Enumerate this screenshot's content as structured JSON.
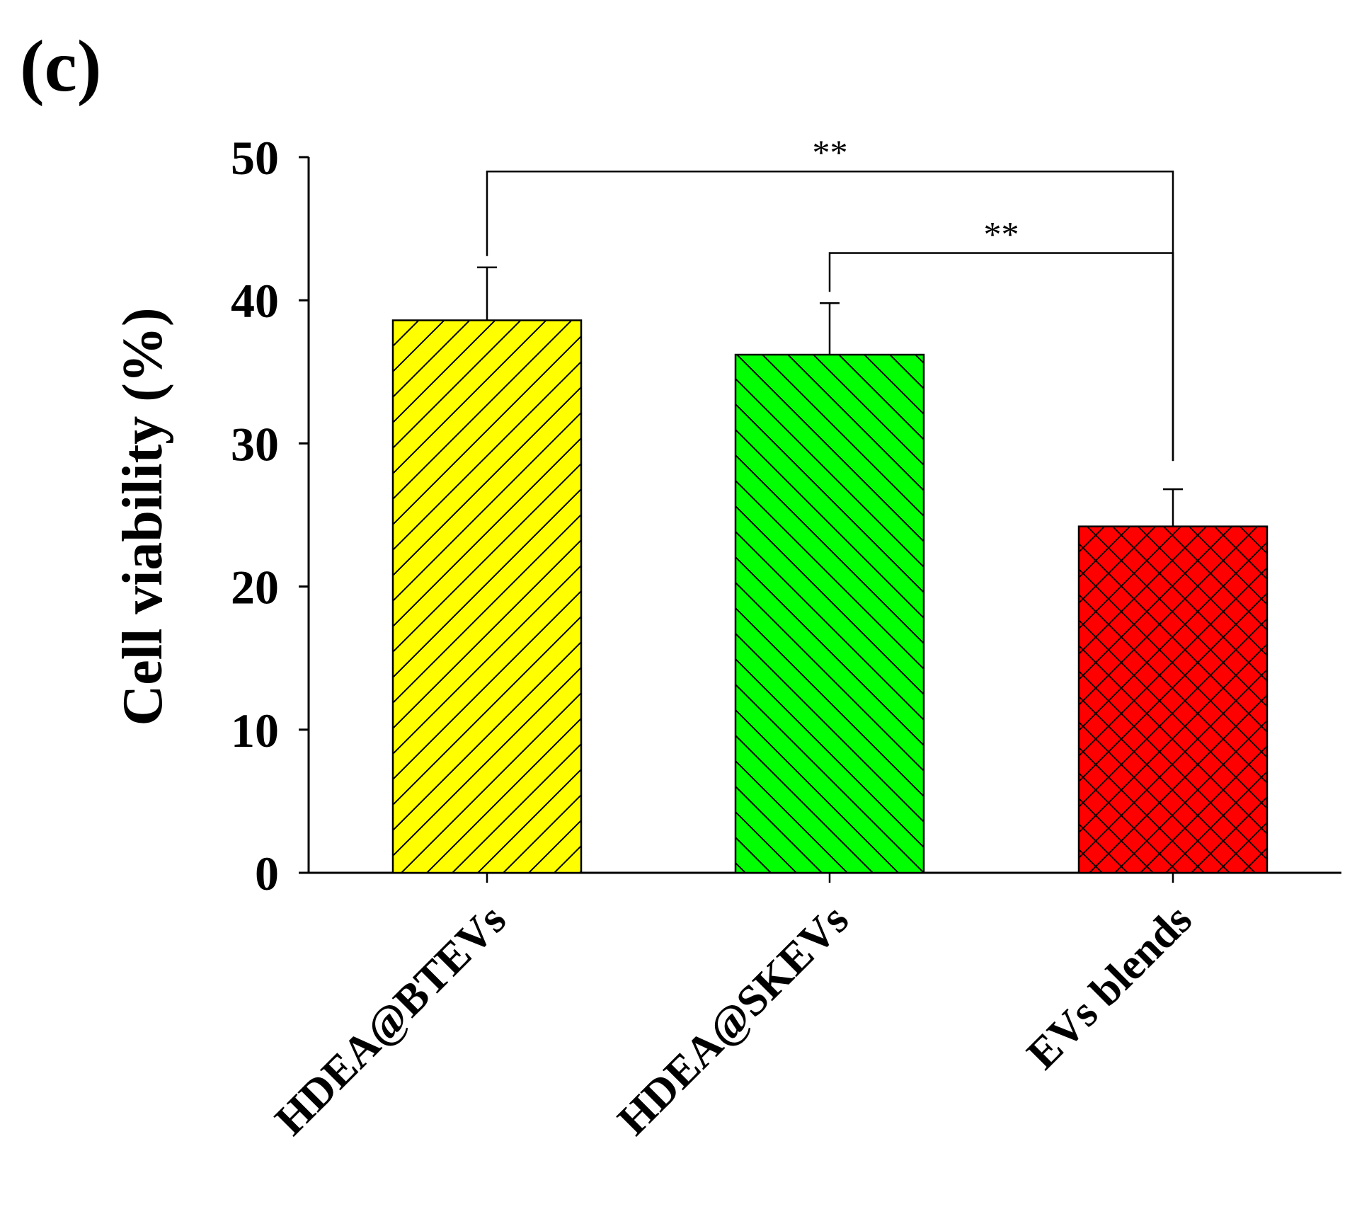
{
  "panel_label": "(c)",
  "chart_data": {
    "type": "bar",
    "title": "",
    "xlabel": "",
    "ylabel": "Cell viability (%)",
    "ylim": [
      0,
      50
    ],
    "yticks": [
      "0",
      "10",
      "20",
      "30",
      "40",
      "50"
    ],
    "yticks_values": [
      0,
      10,
      20,
      30,
      40,
      50
    ],
    "categories": [
      "HDEA@BTEVs",
      "HDEA@SKEVs",
      "EVs blends"
    ],
    "values": [
      38.6,
      36.2,
      24.2
    ],
    "errors": [
      3.7,
      3.6,
      2.6
    ],
    "bar_colors": [
      "#ffff00",
      "#00ff00",
      "#ff0000"
    ],
    "bar_patterns": [
      "forward-diagonal",
      "backward-diagonal",
      "crosshatch"
    ],
    "significance": [
      {
        "from": 0,
        "to": 2,
        "label": "**",
        "level": 49
      },
      {
        "from": 1,
        "to": 2,
        "label": "**",
        "level": 43.3
      }
    ]
  }
}
